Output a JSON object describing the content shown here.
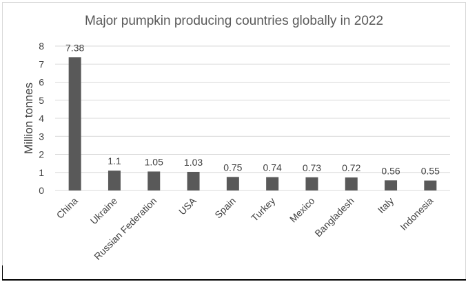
{
  "chart_data": {
    "type": "bar",
    "title": "Major pumpkin producing countries globally in 2022",
    "xlabel": "",
    "ylabel": "Million tonnes",
    "categories": [
      "China",
      "Ukraine",
      "Russian Federation",
      "USA",
      "Spain",
      "Turkey",
      "Mexico",
      "Bangladesh",
      "Italy",
      "Indonesia"
    ],
    "values": [
      7.38,
      1.1,
      1.05,
      1.03,
      0.75,
      0.74,
      0.73,
      0.72,
      0.56,
      0.55
    ],
    "data_labels": [
      "7.38",
      "1.1",
      "1.05",
      "1.03",
      "0.75",
      "0.74",
      "0.73",
      "0.72",
      "0.56",
      "0.55"
    ],
    "ylim": [
      0,
      8
    ],
    "yticks": [
      "0",
      "1",
      "2",
      "3",
      "4",
      "5",
      "6",
      "7",
      "8"
    ],
    "grid": true,
    "legend": "none",
    "bar_color": "#595959",
    "grid_color": "#d9d9d9"
  }
}
